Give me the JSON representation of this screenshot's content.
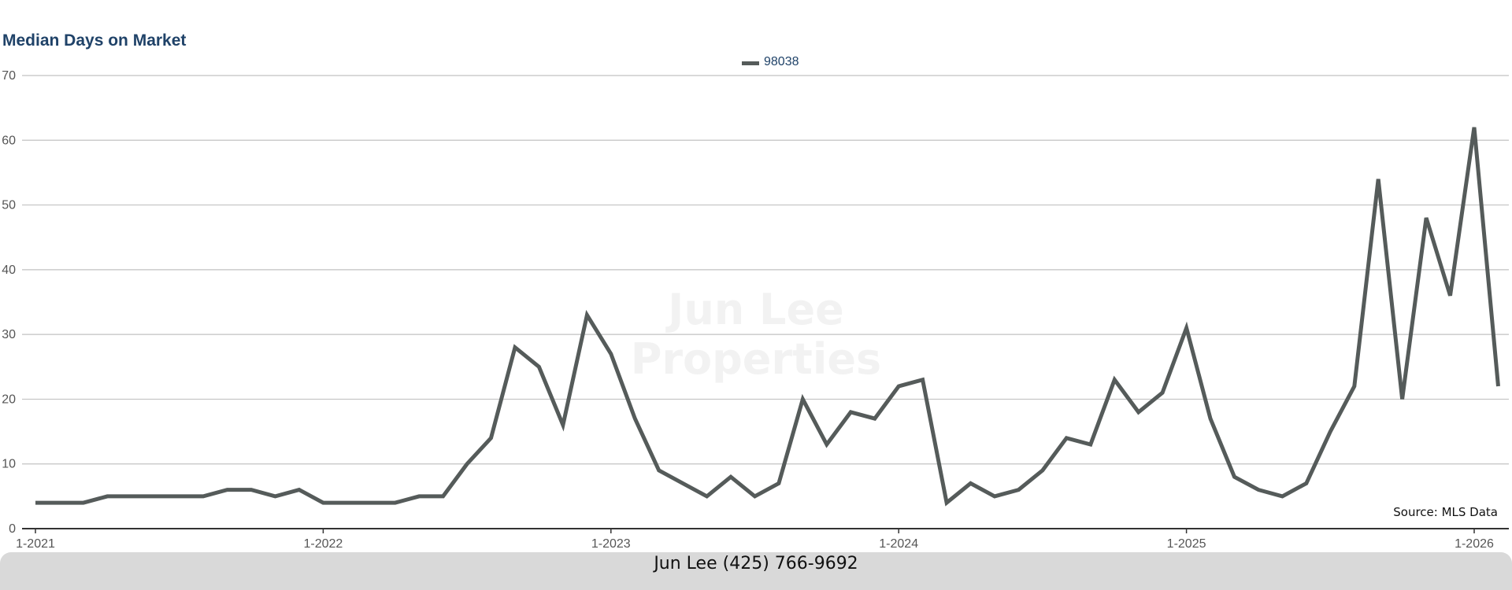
{
  "chart_data": {
    "type": "line",
    "title": "Median Days on Market",
    "series": [
      {
        "name": "98038",
        "color": "#555b5a",
        "values": [
          4,
          4,
          4,
          5,
          5,
          5,
          5,
          5,
          6,
          6,
          5,
          6,
          4,
          4,
          4,
          4,
          5,
          5,
          10,
          14,
          28,
          25,
          16,
          33,
          27,
          17,
          9,
          7,
          5,
          8,
          5,
          7,
          20,
          13,
          18,
          17,
          22,
          23,
          4,
          7,
          5,
          6,
          9,
          14,
          13,
          23,
          18,
          21,
          31,
          17,
          8,
          6,
          5,
          7,
          15,
          22,
          54,
          20,
          48,
          36,
          62,
          22
        ]
      }
    ],
    "x": [
      "1-2021",
      "2-2021",
      "3-2021",
      "4-2021",
      "5-2021",
      "6-2021",
      "7-2021",
      "8-2021",
      "9-2021",
      "10-2021",
      "11-2021",
      "12-2021",
      "1-2022",
      "2-2022",
      "3-2022",
      "4-2022",
      "5-2022",
      "6-2022",
      "7-2022",
      "8-2022",
      "9-2022",
      "10-2022",
      "11-2022",
      "12-2022",
      "1-2023",
      "2-2023",
      "3-2023",
      "4-2023",
      "5-2023",
      "6-2023",
      "7-2023",
      "8-2023",
      "9-2023",
      "10-2023",
      "11-2023",
      "12-2023",
      "1-2024",
      "2-2024",
      "3-2024",
      "4-2024",
      "5-2024",
      "6-2024",
      "7-2024",
      "8-2024",
      "9-2024",
      "10-2024",
      "11-2024",
      "12-2024",
      "1-2025",
      "2-2025",
      "3-2025",
      "4-2025",
      "5-2025",
      "6-2025",
      "7-2025",
      "8-2025",
      "9-2025",
      "10-2025",
      "11-2025",
      "12-2025",
      "1-2026",
      "2-2026"
    ],
    "x_tick_labels": [
      "1-2021",
      "1-2022",
      "1-2023",
      "1-2024",
      "1-2025",
      "1-2026"
    ],
    "y_ticks": [
      0,
      10,
      20,
      30,
      40,
      50,
      60,
      70
    ],
    "ylim": [
      0,
      70
    ],
    "grid": true,
    "legend_position": "top-center"
  },
  "watermark": "Jun Lee Properties",
  "source": "Source: MLS Data",
  "footer": "Jun Lee (425) 766-9692",
  "colors": {
    "line": "#555b5a",
    "title": "#1f4268",
    "grid": "#c2c2c2",
    "axis": "#333333",
    "footer_bg": "#d9d9d9"
  }
}
